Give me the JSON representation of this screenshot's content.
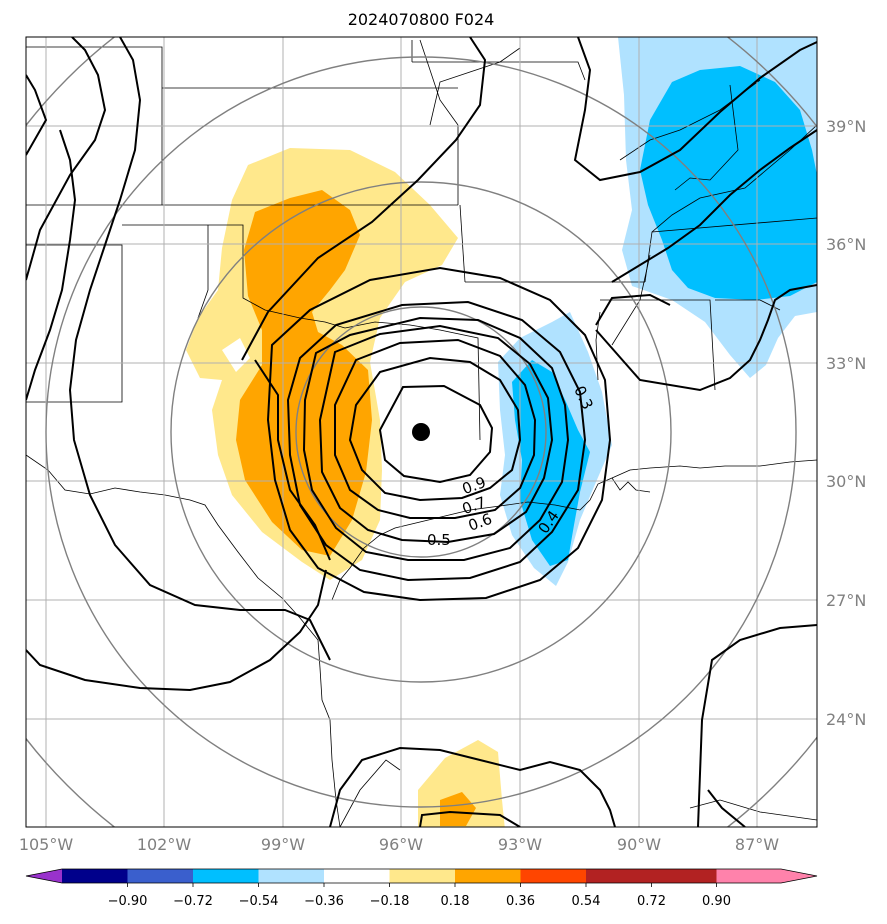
{
  "title": "2024070800 F024",
  "map": {
    "lon_labels": [
      "105°W",
      "102°W",
      "99°W",
      "96°W",
      "93°W",
      "90°W",
      "87°W"
    ],
    "lat_labels": [
      "39°N",
      "36°N",
      "33°N",
      "30°N",
      "27°N",
      "24°N"
    ],
    "center_marker": {
      "name": "storm-center",
      "lon": -95.7,
      "lat": 31.2
    },
    "contour_labels": [
      "0.9",
      "0.7",
      "0.6",
      "0.5",
      "0.4",
      "0.3"
    ],
    "gridlines": true
  },
  "colorbar": {
    "ticks": [
      "−0.90",
      "−0.72",
      "−0.54",
      "−0.36",
      "−0.18",
      "0.18",
      "0.36",
      "0.54",
      "0.72",
      "0.90"
    ],
    "colors": [
      "#9932cc",
      "#00008b",
      "#3a5fcd",
      "#00bfff",
      "#b0e2ff",
      "#ffffff",
      "#ffe88c",
      "#ffa500",
      "#ff4500",
      "#b22222",
      "#ff82ab"
    ],
    "extend": "both"
  },
  "fills": {
    "positive_light": "#ffe88c",
    "positive_dark": "#ffa500",
    "negative_light": "#b0e2ff",
    "negative_dark": "#00bfff"
  }
}
